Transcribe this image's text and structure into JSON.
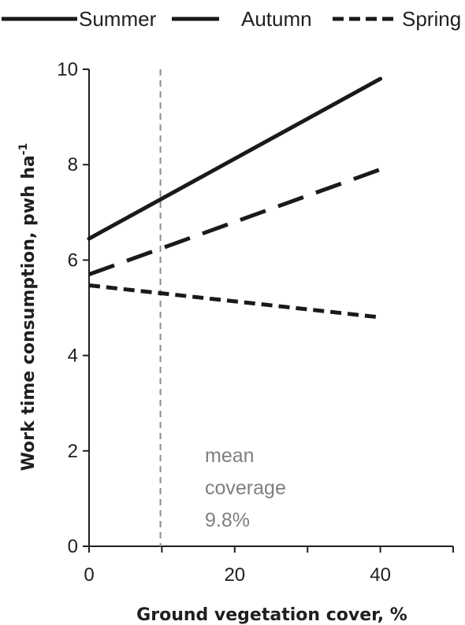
{
  "chart_data": {
    "type": "line",
    "x_axis": {
      "label": "Ground vegetation cover, %",
      "range": [
        0,
        50
      ],
      "ticks": [
        0,
        20,
        40
      ]
    },
    "y_axis": {
      "label_main": "Work time consumption, pwh ha",
      "label_superscript": "-1",
      "range": [
        0,
        10
      ],
      "ticks": [
        0,
        2,
        4,
        6,
        8,
        10
      ]
    },
    "legend_position": "top",
    "series": [
      {
        "name": "Summer",
        "style": "solid",
        "color": "#1a1a1a",
        "x": [
          0,
          40
        ],
        "y": [
          6.45,
          9.8
        ]
      },
      {
        "name": "Autumn",
        "style": "long-dash",
        "color": "#1a1a1a",
        "x": [
          0,
          40
        ],
        "y": [
          5.7,
          7.9
        ]
      },
      {
        "name": "Spring",
        "style": "short-dash",
        "color": "#1a1a1a",
        "x": [
          0,
          40
        ],
        "y": [
          5.47,
          4.8
        ]
      }
    ],
    "reference_line": {
      "x": 9.8,
      "style": "dashed",
      "color": "#8c8c8c"
    },
    "annotation": {
      "lines": [
        "mean",
        "coverage",
        "9.8%"
      ],
      "color": "#7f7f7f"
    },
    "grid": false
  }
}
